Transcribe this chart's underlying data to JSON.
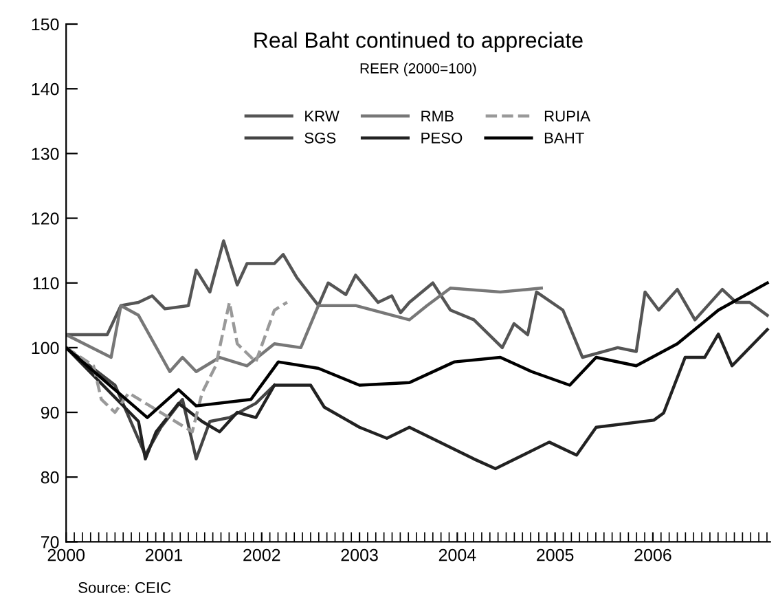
{
  "chart_data": {
    "type": "line",
    "title": "Real Baht continued to appreciate",
    "subtitle": "REER (2000=100)",
    "annotations": [
      "Source: CEIC"
    ],
    "xlim": [
      2000,
      2007.2
    ],
    "xticks": [
      2000,
      2001,
      2002,
      2003,
      2004,
      2005,
      2006
    ],
    "ylim": [
      70,
      150
    ],
    "yticks": [
      70,
      80,
      90,
      100,
      110,
      120,
      130,
      140,
      150
    ],
    "grid": false,
    "legend": "top",
    "marker": "none",
    "line_style": "solid",
    "series": [
      {
        "name": "KRW",
        "color": "#555555",
        "x": [
          2000,
          2000.42,
          2000.56,
          2000.74,
          2000.88,
          2001.01,
          2001.25,
          2001.33,
          2001.47,
          2001.61,
          2001.75,
          2001.85,
          2002.13,
          2002.22,
          2002.36,
          2002.58,
          2002.68,
          2002.86,
          2002.96,
          2003.19,
          2003.33,
          2003.42,
          2003.51,
          2003.75,
          2003.93,
          2004.17,
          2004.46,
          2004.58,
          2004.72,
          2004.81,
          2005.08,
          2005.28,
          2005.64,
          2005.83,
          2005.92,
          2006.06,
          2006.25,
          2006.43,
          2006.71,
          2006.85,
          2006.99,
          2007.17
        ],
        "values": [
          102,
          102,
          106.5,
          107,
          108,
          106,
          106.5,
          112,
          108.6,
          116.5,
          109.7,
          113,
          113,
          114.4,
          110.8,
          106.5,
          110,
          108.2,
          111.2,
          107,
          108,
          105.4,
          107,
          110,
          105.8,
          104.3,
          100,
          103.7,
          102,
          108.6,
          105.8,
          98.5,
          100,
          99.4,
          108.6,
          105.8,
          109,
          104.3,
          109,
          107,
          107,
          105
        ]
      },
      {
        "name": "SGS",
        "color": "#444444",
        "x": [
          2000,
          2000.5,
          2000.81,
          2000.97,
          2001.19,
          2001.33,
          2001.47,
          2001.67,
          2001.94,
          2002.13
        ],
        "values": [
          100,
          94.2,
          83.4,
          87.7,
          92,
          82.8,
          88.6,
          89.2,
          91.4,
          94.2
        ]
      },
      {
        "name": "RMB",
        "color": "#777777",
        "x": [
          2000,
          2000.46,
          2000.56,
          2000.74,
          2001.06,
          2001.19,
          2001.33,
          2001.57,
          2001.85,
          2002.13,
          2002.4,
          2002.58,
          2002.96,
          2003.51,
          2003.69,
          2003.93,
          2004.44,
          2004.86
        ],
        "values": [
          102,
          98.5,
          106.5,
          105,
          96.3,
          98.5,
          96.3,
          98.5,
          97.2,
          100.6,
          100,
          106.5,
          106.5,
          104.3,
          106.5,
          109.2,
          108.6,
          109.2
        ]
      },
      {
        "name": "PESO",
        "color": "#222222",
        "x": [
          2000,
          2000.74,
          2000.81,
          2000.92,
          2001.15,
          2001.39,
          2001.57,
          2001.75,
          2001.94,
          2002.13,
          2002.5,
          2002.64,
          2003.0,
          2003.28,
          2003.51,
          2004.17,
          2004.39,
          2004.94,
          2005.22,
          2005.42,
          2006.01,
          2006.11,
          2006.33,
          2006.53,
          2006.67,
          2006.81,
          2007.17
        ],
        "values": [
          100,
          88.6,
          82.8,
          87,
          91.4,
          88.6,
          87,
          90,
          89.2,
          94.2,
          94.2,
          90.8,
          87.7,
          86,
          87.7,
          82.8,
          81.3,
          85.4,
          83.4,
          87.7,
          88.8,
          89.9,
          98.5,
          98.5,
          102.1,
          97.2,
          102.8
        ]
      },
      {
        "name": "RUPIA",
        "color": "#999999",
        "line_style": "dashed",
        "x": [
          2000,
          2000.28,
          2000.36,
          2000.5,
          2000.64,
          2001.29,
          2001.39,
          2001.53,
          2001.67,
          2001.75,
          2001.94,
          2002.13,
          2002.26
        ],
        "values": [
          100,
          97.2,
          92,
          90,
          93,
          87,
          93,
          97.2,
          107,
          100.6,
          97.8,
          105.8,
          107
        ]
      },
      {
        "name": "BAHT",
        "color": "#000000",
        "x": [
          2000,
          2000.83,
          2001.15,
          2001.33,
          2001.89,
          2002.17,
          2002.58,
          2003.0,
          2003.51,
          2003.97,
          2004.44,
          2004.76,
          2005.15,
          2005.42,
          2005.83,
          2006.25,
          2006.67,
          2007.17
        ],
        "values": [
          100,
          89.2,
          93.5,
          91,
          92,
          97.8,
          96.8,
          94.2,
          94.6,
          97.8,
          98.5,
          96.3,
          94.2,
          98.5,
          97.2,
          100.6,
          105.8,
          110
        ]
      }
    ]
  }
}
